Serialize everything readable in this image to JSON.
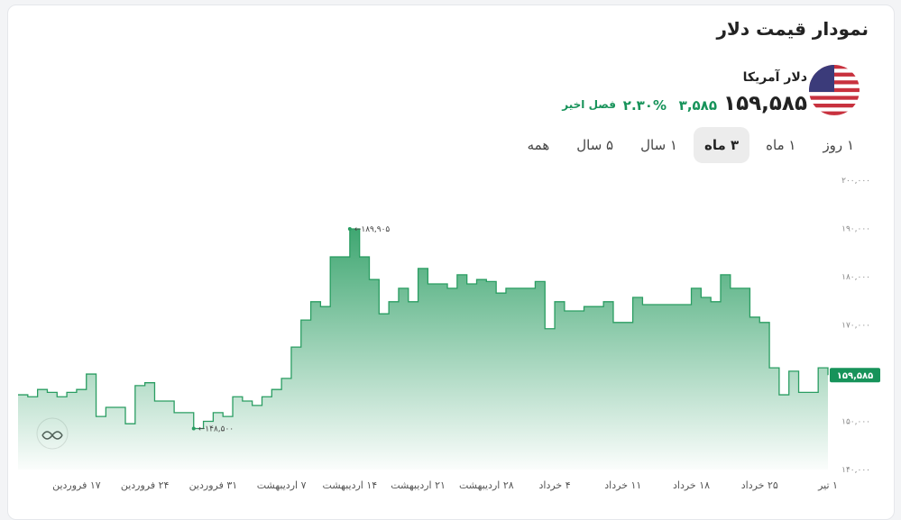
{
  "header": {
    "title": "نمودار قیمت دلار"
  },
  "currency": {
    "name": "دلار آمریکا",
    "price": "۱۵۹,۵۸۵",
    "change": "۳,۵۸۵",
    "change_percent": "۲.۳۰%",
    "period": "فصل اخیر"
  },
  "tabs": [
    {
      "label": "۱ روز",
      "active": false
    },
    {
      "label": "۱ ماه",
      "active": false
    },
    {
      "label": "۳ ماه",
      "active": true
    },
    {
      "label": "۱ سال",
      "active": false
    },
    {
      "label": "۵ سال",
      "active": false
    },
    {
      "label": "همه",
      "active": false
    }
  ],
  "chart_data": {
    "type": "area",
    "color": "#2a9d62",
    "categories": [
      null,
      null,
      null,
      null,
      null,
      null,
      "۱۷ فروردین",
      null,
      null,
      null,
      null,
      null,
      null,
      "۲۴ فروردین",
      null,
      null,
      null,
      null,
      null,
      null,
      "۳۱ فروردین",
      null,
      null,
      null,
      null,
      null,
      null,
      "۷ اردیبهشت",
      null,
      null,
      null,
      null,
      null,
      null,
      "۱۴ اردیبهشت",
      null,
      null,
      null,
      null,
      null,
      null,
      "۲۱ اردیبهشت",
      null,
      null,
      null,
      null,
      null,
      null,
      "۲۸ اردیبهشت",
      null,
      null,
      null,
      null,
      null,
      null,
      "۴ خرداد",
      null,
      null,
      null,
      null,
      null,
      null,
      "۱۱ خرداد",
      null,
      null,
      null,
      null,
      null,
      null,
      "۱۸ خرداد",
      null,
      null,
      null,
      null,
      null,
      null,
      "۲۵ خرداد",
      null,
      null,
      null,
      null,
      null,
      null,
      "۱ تیر"
    ],
    "values": [
      155500,
      155100,
      156600,
      156000,
      155100,
      156000,
      156600,
      159800,
      151000,
      152900,
      152900,
      149500,
      157400,
      158000,
      154200,
      154200,
      151800,
      151800,
      148500,
      150000,
      151800,
      151000,
      155100,
      154200,
      153300,
      155100,
      156600,
      158900,
      165400,
      171000,
      174800,
      173800,
      184100,
      184100,
      189905,
      184100,
      179400,
      172300,
      174800,
      177600,
      174800,
      181700,
      178500,
      178500,
      177600,
      180400,
      178500,
      179400,
      179000,
      176600,
      177600,
      177600,
      177600,
      179000,
      169200,
      174800,
      172900,
      172900,
      173800,
      173800,
      174800,
      170500,
      170500,
      175700,
      174200,
      174200,
      174200,
      174200,
      174200,
      177600,
      175700,
      174800,
      180400,
      177600,
      177600,
      171600,
      170500,
      161100,
      155500,
      160400,
      156000,
      156000,
      161100,
      159585
    ],
    "value_labels": [
      null,
      null,
      null,
      null,
      null,
      null,
      null,
      null,
      null,
      null,
      null,
      null,
      null,
      null,
      null,
      null,
      null,
      null,
      "←۱۴۸,۵۰۰",
      null,
      null,
      null,
      null,
      null,
      null,
      null,
      null,
      null,
      null,
      null,
      null,
      null,
      null,
      null,
      "←۱۸۹,۹۰۵",
      null,
      null,
      null,
      null,
      null,
      null,
      null,
      null,
      null,
      null,
      null,
      null,
      null,
      null,
      null,
      null,
      null,
      null,
      null,
      null,
      null,
      null,
      null,
      null,
      null,
      null,
      null,
      null,
      null,
      null,
      null,
      null,
      null,
      null,
      null,
      null,
      null,
      null,
      null,
      null,
      null,
      null,
      null,
      null,
      null,
      null,
      null,
      null,
      "۱۵۹,۵۸۵"
    ],
    "ylim": [
      140000,
      200000
    ],
    "yticks": [
      {
        "value": 140000,
        "label": "۱۴۰,۰۰۰"
      },
      {
        "value": 150000,
        "label": "۱۵۰,۰۰۰"
      },
      {
        "value": 170000,
        "label": "۱۷۰,۰۰۰"
      },
      {
        "value": 180000,
        "label": "۱۸۰,۰۰۰"
      },
      {
        "value": 190000,
        "label": "۱۹۰,۰۰۰"
      },
      {
        "value": 200000,
        "label": "۲۰۰,۰۰۰"
      }
    ]
  }
}
